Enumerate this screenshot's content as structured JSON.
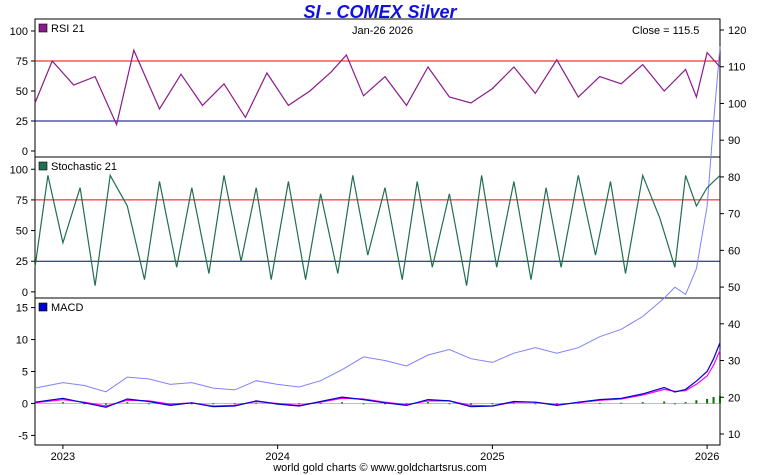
{
  "header": {
    "title": "SI  -  COMEX Silver",
    "footer": "world gold charts © www.goldchartsrus.com"
  },
  "chart_data": {
    "type": "line",
    "x_labels": [
      "2023",
      "2024",
      "2025",
      "2026"
    ],
    "date_label": "Jan-26  2026",
    "close_label": "Close = 115.5",
    "price_axis": {
      "ticks": [
        120,
        110,
        100,
        90,
        80,
        70,
        60,
        50,
        40,
        30,
        20,
        10
      ],
      "range": [
        7,
        123
      ],
      "price_series": [
        [
          2022.87,
          22.5
        ],
        [
          2023.0,
          24.0
        ],
        [
          2023.1,
          23.2
        ],
        [
          2023.2,
          21.5
        ],
        [
          2023.3,
          25.5
        ],
        [
          2023.4,
          25.0
        ],
        [
          2023.5,
          23.5
        ],
        [
          2023.6,
          24.0
        ],
        [
          2023.7,
          22.5
        ],
        [
          2023.8,
          22.0
        ],
        [
          2023.9,
          24.5
        ],
        [
          2024.0,
          23.5
        ],
        [
          2024.1,
          22.8
        ],
        [
          2024.2,
          24.5
        ],
        [
          2024.3,
          27.5
        ],
        [
          2024.4,
          31.0
        ],
        [
          2024.5,
          30.0
        ],
        [
          2024.6,
          28.5
        ],
        [
          2024.7,
          31.5
        ],
        [
          2024.8,
          33.0
        ],
        [
          2024.9,
          30.5
        ],
        [
          2025.0,
          29.5
        ],
        [
          2025.1,
          32.0
        ],
        [
          2025.2,
          33.5
        ],
        [
          2025.3,
          32.0
        ],
        [
          2025.4,
          33.5
        ],
        [
          2025.5,
          36.5
        ],
        [
          2025.6,
          38.5
        ],
        [
          2025.7,
          42.0
        ],
        [
          2025.8,
          47.0
        ],
        [
          2025.85,
          50.0
        ],
        [
          2025.9,
          48.0
        ],
        [
          2025.95,
          55.0
        ],
        [
          2026.0,
          72.0
        ],
        [
          2026.03,
          95.0
        ],
        [
          2026.06,
          115.5
        ]
      ]
    },
    "panels": [
      {
        "name": "RSI 21",
        "color": "#8b1a8b",
        "y_ticks": [
          100,
          75,
          50,
          25,
          0
        ],
        "ylim": [
          -5,
          110
        ],
        "ref_lines": [
          {
            "value": 75,
            "color": "#ff0000"
          },
          {
            "value": 25,
            "color": "#00008b"
          }
        ],
        "x": [
          2022.87,
          2022.95,
          2023.05,
          2023.15,
          2023.25,
          2023.33,
          2023.45,
          2023.55,
          2023.65,
          2023.75,
          2023.85,
          2023.95,
          2024.05,
          2024.15,
          2024.25,
          2024.32,
          2024.4,
          2024.5,
          2024.6,
          2024.7,
          2024.8,
          2024.9,
          2025.0,
          2025.1,
          2025.2,
          2025.3,
          2025.4,
          2025.5,
          2025.6,
          2025.7,
          2025.8,
          2025.9,
          2025.95,
          2026.0,
          2026.06
        ],
        "values": [
          40,
          75,
          55,
          62,
          22,
          84,
          35,
          64,
          38,
          56,
          28,
          65,
          38,
          50,
          66,
          80,
          46,
          62,
          38,
          70,
          45,
          40,
          52,
          70,
          48,
          76,
          45,
          62,
          56,
          72,
          50,
          68,
          45,
          82,
          70
        ]
      },
      {
        "name": "Stochastic 21",
        "color": "#1f6e55",
        "y_ticks": [
          100,
          75,
          50,
          25,
          0
        ],
        "ylim": [
          -5,
          110
        ],
        "ref_lines": [
          {
            "value": 75,
            "color": "#ff0000"
          },
          {
            "value": 25,
            "color": "#00008b"
          }
        ],
        "x": [
          2022.87,
          2022.93,
          2023.0,
          2023.08,
          2023.15,
          2023.22,
          2023.3,
          2023.38,
          2023.45,
          2023.53,
          2023.6,
          2023.68,
          2023.75,
          2023.83,
          2023.9,
          2023.97,
          2024.05,
          2024.13,
          2024.2,
          2024.28,
          2024.35,
          2024.42,
          2024.5,
          2024.58,
          2024.65,
          2024.72,
          2024.8,
          2024.88,
          2024.95,
          2025.02,
          2025.1,
          2025.18,
          2025.25,
          2025.32,
          2025.4,
          2025.48,
          2025.55,
          2025.62,
          2025.7,
          2025.78,
          2025.85,
          2025.9,
          2025.95,
          2026.0,
          2026.06
        ],
        "values": [
          20,
          95,
          40,
          85,
          5,
          95,
          70,
          10,
          90,
          20,
          85,
          15,
          95,
          25,
          85,
          10,
          90,
          10,
          80,
          15,
          95,
          30,
          85,
          10,
          90,
          20,
          80,
          5,
          95,
          20,
          90,
          10,
          85,
          20,
          95,
          30,
          90,
          15,
          95,
          60,
          20,
          95,
          70,
          85,
          95
        ]
      },
      {
        "name": "MACD",
        "color": "#0000cc",
        "y_ticks": [
          15,
          10,
          5,
          0,
          -5
        ],
        "ylim": [
          -6.5,
          16.5
        ],
        "signal_color": "#ff00ff",
        "histogram_color": "#007000",
        "x": [
          2022.87,
          2023.0,
          2023.1,
          2023.2,
          2023.3,
          2023.4,
          2023.5,
          2023.6,
          2023.7,
          2023.8,
          2023.9,
          2024.0,
          2024.1,
          2024.2,
          2024.3,
          2024.4,
          2024.5,
          2024.6,
          2024.7,
          2024.8,
          2024.9,
          2025.0,
          2025.1,
          2025.2,
          2025.3,
          2025.4,
          2025.5,
          2025.6,
          2025.7,
          2025.8,
          2025.85,
          2025.9,
          2025.95,
          2026.0,
          2026.03,
          2026.06
        ],
        "values": [
          0.2,
          0.8,
          0.1,
          -0.6,
          0.7,
          0.3,
          -0.3,
          0.1,
          -0.5,
          -0.4,
          0.4,
          -0.1,
          -0.4,
          0.3,
          1.0,
          0.6,
          0.1,
          -0.3,
          0.6,
          0.4,
          -0.5,
          -0.4,
          0.3,
          0.2,
          -0.3,
          0.2,
          0.6,
          0.8,
          1.5,
          2.5,
          1.8,
          2.2,
          3.5,
          5.0,
          7.0,
          9.5
        ],
        "signal": [
          0.1,
          0.6,
          0.2,
          -0.4,
          0.5,
          0.4,
          -0.1,
          0.1,
          -0.4,
          -0.3,
          0.3,
          0.0,
          -0.3,
          0.2,
          0.8,
          0.7,
          0.2,
          -0.2,
          0.4,
          0.4,
          -0.3,
          -0.4,
          0.2,
          0.2,
          -0.2,
          0.1,
          0.5,
          0.7,
          1.3,
          2.2,
          1.9,
          2.0,
          3.0,
          4.3,
          6.0,
          8.3
        ]
      }
    ]
  }
}
